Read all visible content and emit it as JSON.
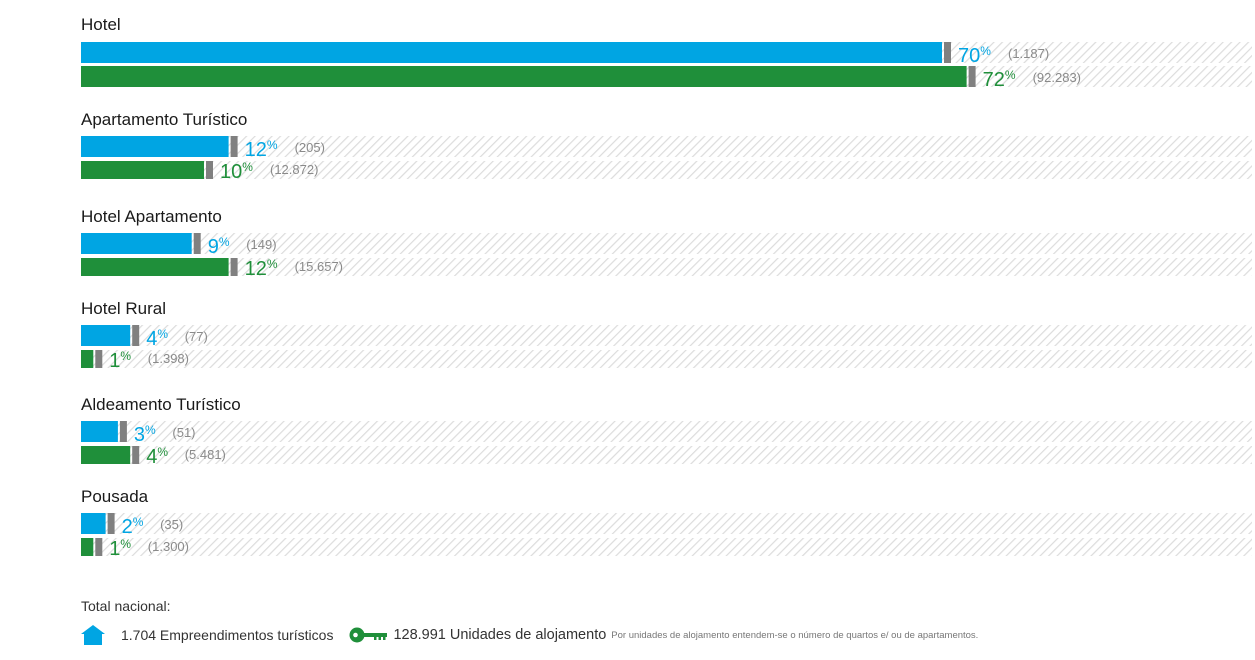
{
  "chart_data": {
    "type": "bar",
    "orientation": "horizontal",
    "categories": [
      "Hotel",
      "Apartamento Turístico",
      "Hotel Apartamento",
      "Hotel Rural",
      "Aldeamento Turístico",
      "Pousada"
    ],
    "series": [
      {
        "color": "#00a5e3",
        "values": [
          70,
          12,
          9,
          4,
          3,
          2
        ],
        "count_labels": [
          "(1.187)",
          "(205)",
          "(149)",
          "(77)",
          "(51)",
          "(35)"
        ]
      },
      {
        "color": "#1f8f3a",
        "values": [
          72,
          10,
          12,
          1,
          4,
          1
        ],
        "count_labels": [
          "(92.283)",
          "(12.872)",
          "(15.657)",
          "(1.398)",
          "(5.481)",
          "(1.300)"
        ]
      }
    ],
    "value_suffix": "%",
    "xlim": [
      0,
      100
    ],
    "grid": false
  },
  "footer": {
    "total_label": "Total nacional:",
    "establishments": {
      "icon": "house-icon",
      "text": "1.704 Empreendimentos turísticos"
    },
    "units": {
      "icon": "key-icon",
      "text": "128.991 Unidades de alojamento"
    },
    "note": "Por unidades de alojamento entendem-se o número de quartos e/ ou de apartamentos."
  }
}
